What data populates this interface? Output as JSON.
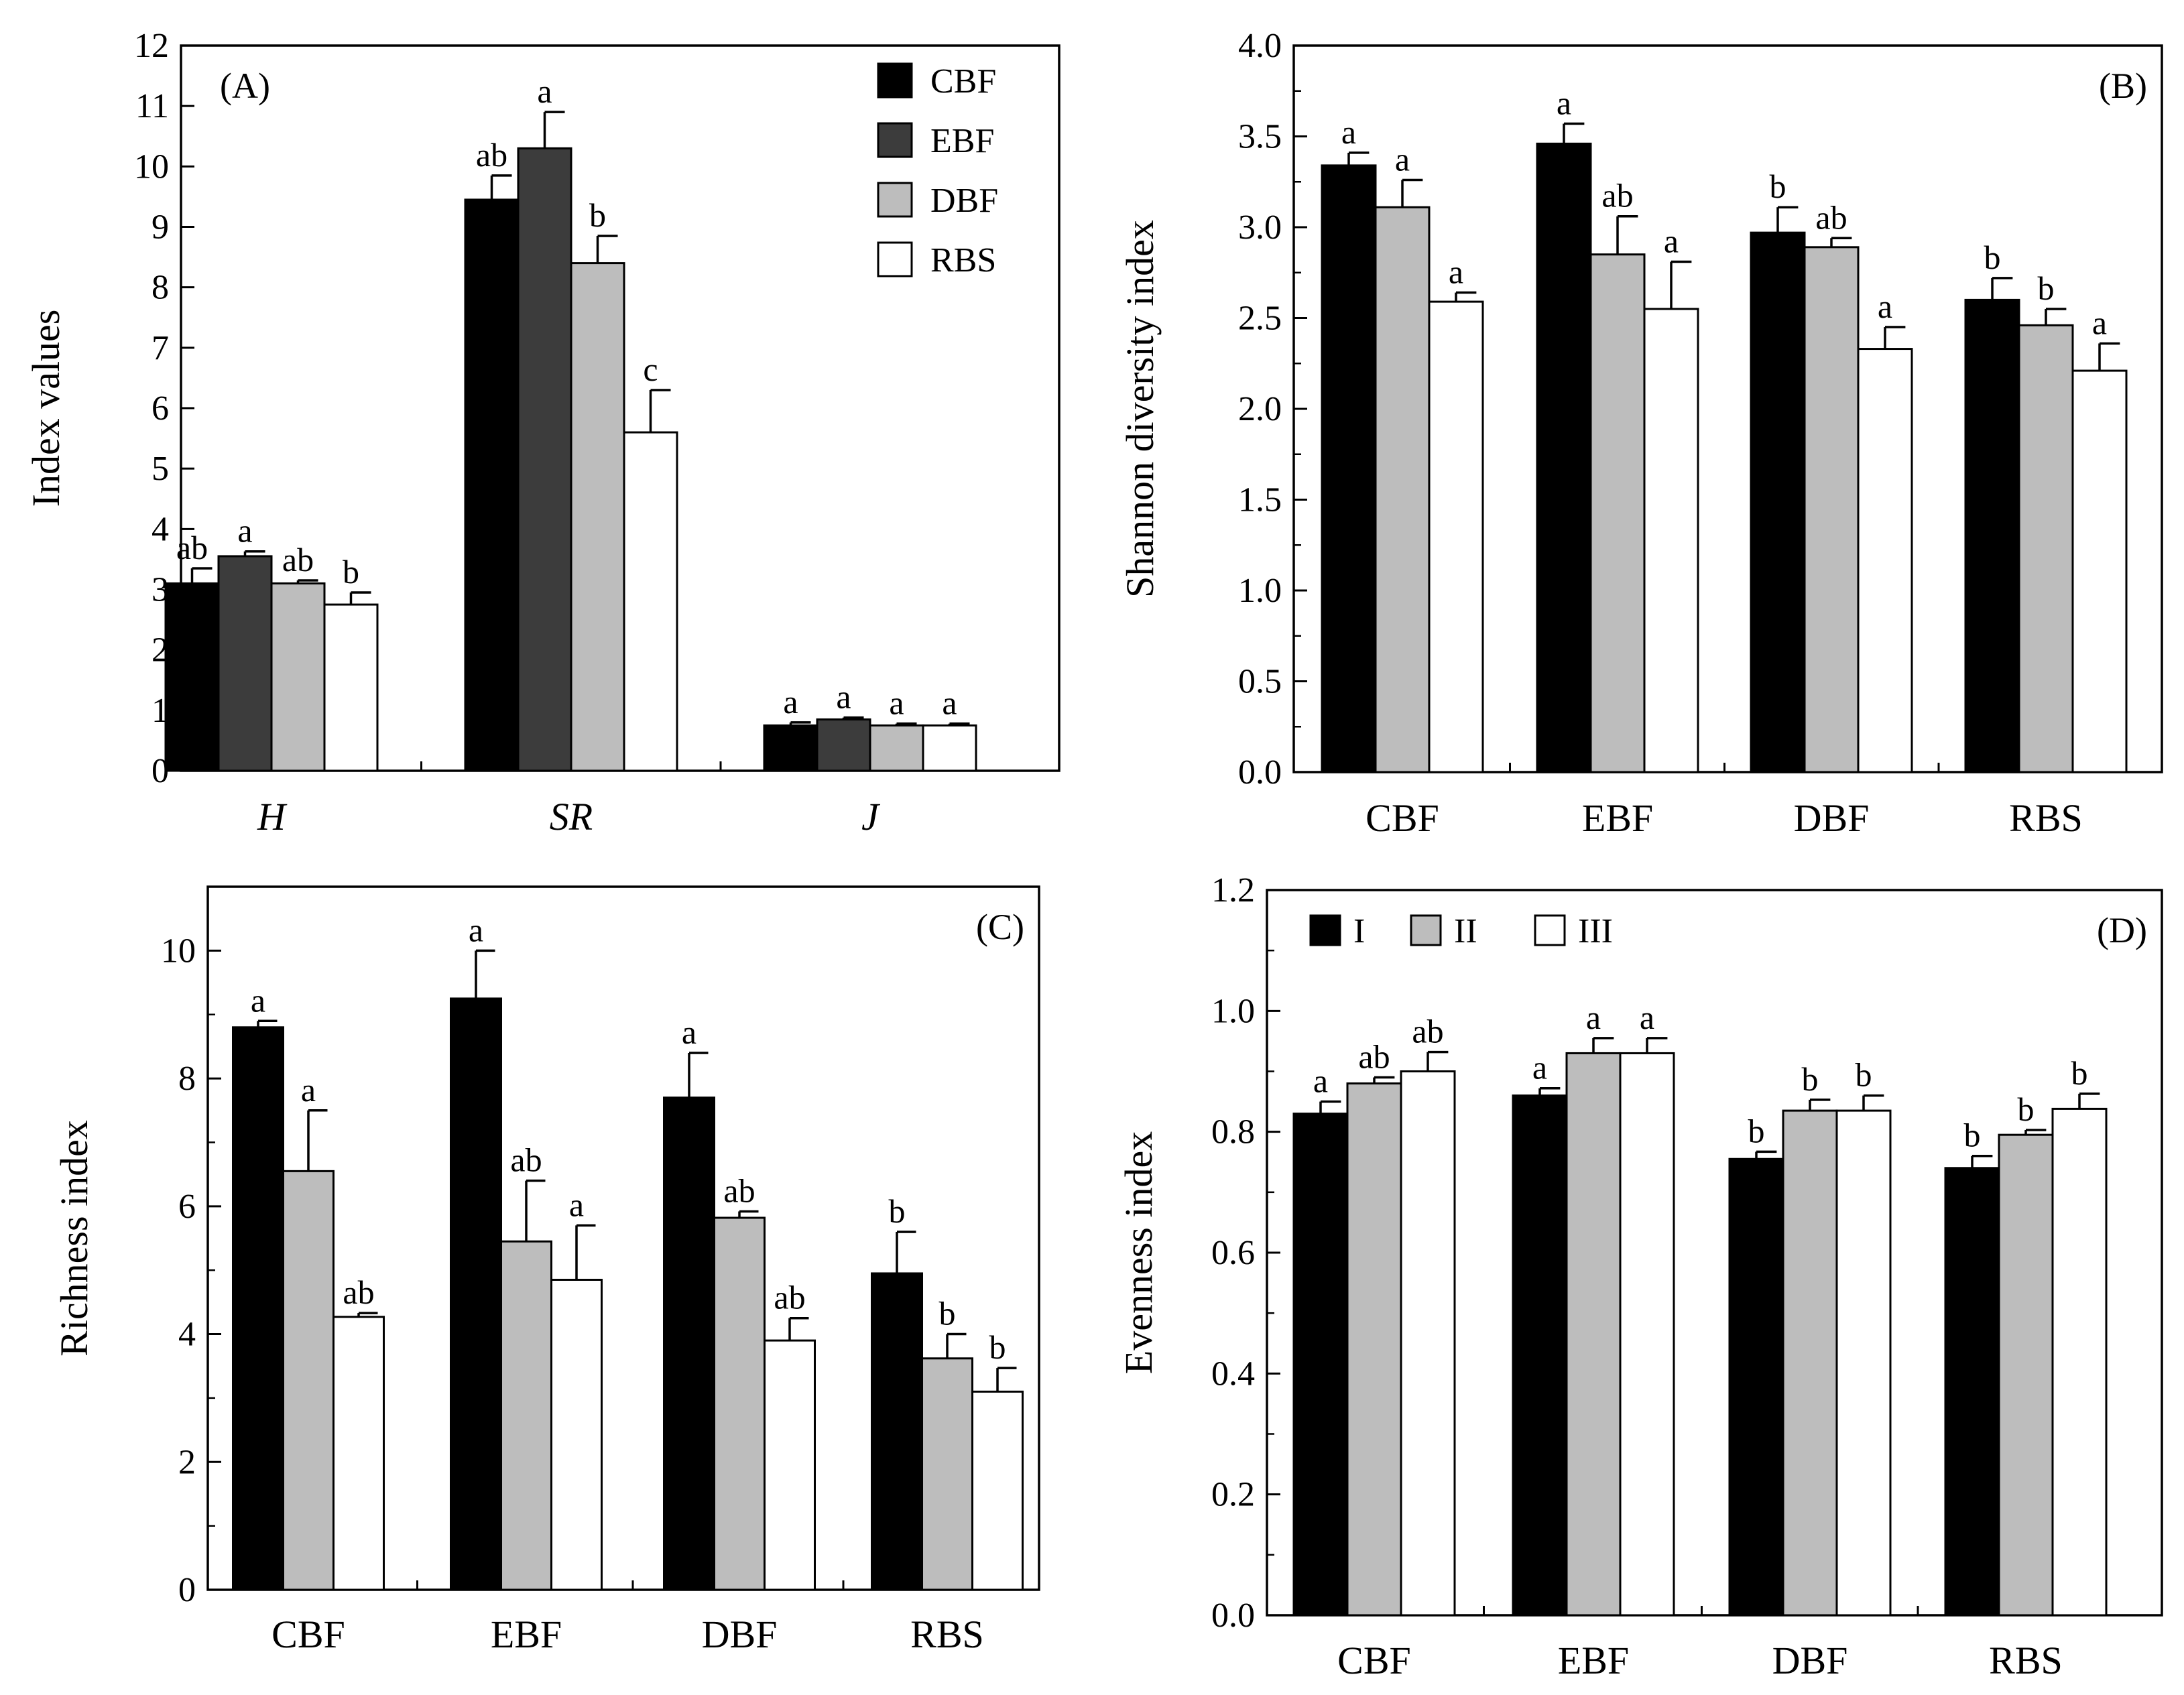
{
  "chart_data": [
    {
      "id": "A",
      "type": "bar",
      "panel_label": "(A)",
      "ylabel": "Index values",
      "xlabel": "",
      "ylim": [
        0,
        12
      ],
      "yticks": [
        0,
        1,
        2,
        3,
        4,
        5,
        6,
        7,
        8,
        9,
        10,
        11,
        12
      ],
      "ytick_labels": [
        "0",
        "1",
        "2",
        "3",
        "4",
        "5",
        "6",
        "7",
        "8",
        "9",
        "10",
        "11",
        "12"
      ],
      "categories": [
        "H",
        "SR",
        "J"
      ],
      "categories_italic": true,
      "legend": {
        "position": "top-right",
        "columns": 1
      },
      "series": [
        {
          "name": "CBF",
          "color": "#000000",
          "values": [
            3.1,
            9.45,
            0.75
          ],
          "errors": [
            0.25,
            0.4,
            0.05
          ],
          "labels": [
            "ab",
            "ab",
            "a"
          ]
        },
        {
          "name": "EBF",
          "color": "#3c3c3c",
          "values": [
            3.55,
            10.3,
            0.85
          ],
          "errors": [
            0.08,
            0.6,
            0.03
          ],
          "labels": [
            "a",
            "a",
            "a"
          ]
        },
        {
          "name": "DBF",
          "color": "#bdbdbd",
          "values": [
            3.1,
            8.4,
            0.75
          ],
          "errors": [
            0.05,
            0.45,
            0.03
          ],
          "labels": [
            "ab",
            "b",
            "a"
          ]
        },
        {
          "name": "RBS",
          "color": "#ffffff",
          "values": [
            2.75,
            5.6,
            0.75
          ],
          "errors": [
            0.2,
            0.7,
            0.03
          ],
          "labels": [
            "b",
            "c",
            "a"
          ]
        }
      ]
    },
    {
      "id": "B",
      "type": "bar",
      "panel_label": "(B)",
      "ylabel": "Shannon diversity index",
      "xlabel": "",
      "ylim": [
        0,
        4
      ],
      "yticks": [
        0,
        0.5,
        1,
        1.5,
        2,
        2.5,
        3,
        3.5,
        4
      ],
      "ytick_labels": [
        "0.0",
        "0.5",
        "1.0",
        "1.5",
        "2.0",
        "2.5",
        "3.0",
        "3.5",
        "4.0"
      ],
      "categories": [
        "CBF",
        "EBF",
        "DBF",
        "RBS"
      ],
      "categories_italic": false,
      "series": [
        {
          "name": "I",
          "color": "#000000",
          "values": [
            3.34,
            3.46,
            2.97,
            2.6
          ],
          "errors": [
            0.07,
            0.11,
            0.14,
            0.12
          ],
          "labels": [
            "a",
            "a",
            "b",
            "b"
          ]
        },
        {
          "name": "II",
          "color": "#bdbdbd",
          "values": [
            3.11,
            2.85,
            2.89,
            2.46
          ],
          "errors": [
            0.15,
            0.21,
            0.05,
            0.09
          ],
          "labels": [
            "a",
            "ab",
            "ab",
            "b"
          ]
        },
        {
          "name": "III",
          "color": "#ffffff",
          "values": [
            2.59,
            2.55,
            2.33,
            2.21
          ],
          "errors": [
            0.05,
            0.26,
            0.12,
            0.15
          ],
          "labels": [
            "a",
            "a",
            "a",
            "a"
          ]
        }
      ]
    },
    {
      "id": "C",
      "type": "bar",
      "panel_label": "(C)",
      "ylabel": "Richness index",
      "xlabel": "",
      "ylim": [
        0,
        11
      ],
      "yticks": [
        0,
        2,
        4,
        6,
        8,
        10
      ],
      "ytick_labels": [
        "0",
        "2",
        "4",
        "6",
        "8",
        "10"
      ],
      "categories": [
        "CBF",
        "EBF",
        "DBF",
        "RBS"
      ],
      "categories_italic": false,
      "series": [
        {
          "name": "I",
          "color": "#000000",
          "values": [
            8.8,
            9.25,
            7.7,
            4.95
          ],
          "errors": [
            0.1,
            0.75,
            0.7,
            0.65
          ],
          "labels": [
            "a",
            "a",
            "a",
            "b"
          ]
        },
        {
          "name": "II",
          "color": "#bdbdbd",
          "values": [
            6.55,
            5.45,
            5.82,
            3.62
          ],
          "errors": [
            0.95,
            0.95,
            0.1,
            0.38
          ],
          "labels": [
            "a",
            "ab",
            "ab",
            "b"
          ]
        },
        {
          "name": "III",
          "color": "#ffffff",
          "values": [
            4.27,
            4.85,
            3.9,
            3.1
          ],
          "errors": [
            0.06,
            0.85,
            0.35,
            0.37
          ],
          "labels": [
            "ab",
            "a",
            "ab",
            "b"
          ]
        }
      ]
    },
    {
      "id": "D",
      "type": "bar",
      "panel_label": "(D)",
      "ylabel": "Evenness index",
      "xlabel": "",
      "ylim": [
        0,
        1.2
      ],
      "yticks": [
        0,
        0.2,
        0.4,
        0.6,
        0.8,
        1,
        1.2
      ],
      "ytick_labels": [
        "0.0",
        "0.2",
        "0.4",
        "0.6",
        "0.8",
        "1.0",
        "1.2"
      ],
      "categories": [
        "CBF",
        "EBF",
        "DBF",
        "RBS"
      ],
      "categories_italic": false,
      "legend": {
        "position": "top-left",
        "columns": 3
      },
      "series": [
        {
          "name": "I",
          "color": "#000000",
          "values": [
            0.83,
            0.86,
            0.755,
            0.74
          ],
          "errors": [
            0.02,
            0.012,
            0.012,
            0.02
          ],
          "labels": [
            "a",
            "a",
            "b",
            "b"
          ]
        },
        {
          "name": "II",
          "color": "#bdbdbd",
          "values": [
            0.88,
            0.93,
            0.835,
            0.795
          ],
          "errors": [
            0.01,
            0.025,
            0.018,
            0.008
          ],
          "labels": [
            "ab",
            "a",
            "b",
            "b"
          ]
        },
        {
          "name": "III",
          "color": "#ffffff",
          "values": [
            0.9,
            0.93,
            0.835,
            0.838
          ],
          "errors": [
            0.032,
            0.025,
            0.025,
            0.025
          ],
          "labels": [
            "ab",
            "a",
            "b",
            "b"
          ]
        }
      ]
    }
  ]
}
